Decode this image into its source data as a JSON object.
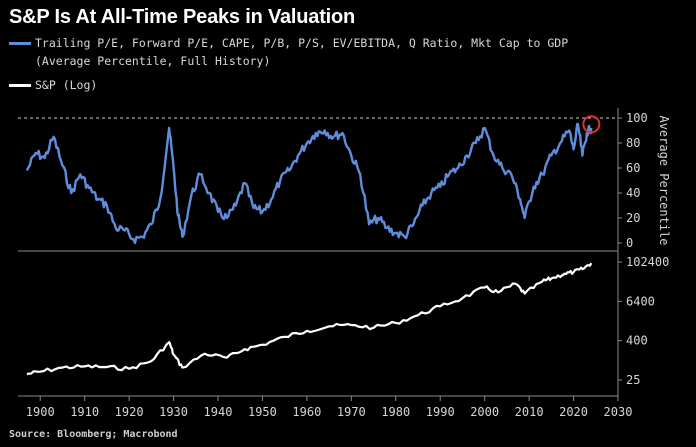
{
  "title": "S&P Is At All-Time Peaks in Valuation",
  "legend": {
    "series1_label": "Trailing P/E, Forward P/E, CAPE, P/B, P/S, EV/EBITDA, Q Ratio, Mkt Cap to GDP",
    "series1_sublabel": "(Average Percentile, Full History)",
    "series2_label": "S&P (Log)"
  },
  "source": "Source: Bloomberg; Macrobond",
  "colors": {
    "valuation": "#5f8ddb",
    "sp": "#ffffff",
    "highlight": "#e03030",
    "background": "#000000"
  },
  "chart_data": [
    {
      "type": "line",
      "name": "valuation-percentile",
      "ylabel": "Average Percentile",
      "ylim": [
        0,
        100
      ],
      "yticks": [
        "100",
        "80",
        "60",
        "40",
        "20",
        "0"
      ],
      "xlim": [
        1895,
        2030
      ],
      "reference_line": 100,
      "x": [
        1897,
        1899,
        1901,
        1903,
        1905,
        1907,
        1909,
        1911,
        1913,
        1915,
        1917,
        1919,
        1921,
        1923,
        1925,
        1927,
        1929,
        1930,
        1931,
        1932,
        1934,
        1936,
        1938,
        1940,
        1942,
        1944,
        1946,
        1948,
        1950,
        1952,
        1954,
        1956,
        1958,
        1960,
        1962,
        1964,
        1966,
        1968,
        1970,
        1972,
        1974,
        1976,
        1978,
        1980,
        1982,
        1984,
        1986,
        1988,
        1990,
        1992,
        1994,
        1996,
        1998,
        2000,
        2002,
        2004,
        2006,
        2008,
        2009,
        2011,
        2013,
        2015,
        2017,
        2019,
        2020,
        2021,
        2022,
        2023,
        2024
      ],
      "values": [
        58,
        72,
        68,
        85,
        62,
        40,
        55,
        44,
        35,
        30,
        12,
        10,
        3,
        5,
        15,
        35,
        92,
        60,
        22,
        5,
        38,
        55,
        40,
        25,
        20,
        30,
        48,
        28,
        25,
        35,
        50,
        58,
        70,
        80,
        88,
        90,
        85,
        88,
        70,
        55,
        15,
        20,
        12,
        8,
        5,
        15,
        30,
        40,
        45,
        55,
        60,
        70,
        80,
        92,
        70,
        60,
        55,
        35,
        20,
        45,
        55,
        70,
        80,
        90,
        75,
        95,
        70,
        88,
        92
      ]
    },
    {
      "type": "line",
      "name": "sp-log",
      "ylabel": "",
      "scale": "log",
      "ylim": [
        10,
        200000
      ],
      "yticks": [
        "102400",
        "6400",
        "400",
        "25"
      ],
      "xlim": [
        1895,
        2030
      ],
      "xticks": [
        "1900",
        "1910",
        "1920",
        "1930",
        "1940",
        "1950",
        "1960",
        "1970",
        "1980",
        "1990",
        "2000",
        "2010",
        "2020",
        "2030"
      ],
      "x": [
        1897,
        1900,
        1905,
        1910,
        1915,
        1920,
        1925,
        1929,
        1930,
        1932,
        1937,
        1942,
        1946,
        1950,
        1955,
        1960,
        1965,
        1970,
        1975,
        1980,
        1985,
        1990,
        1995,
        2000,
        2003,
        2007,
        2009,
        2013,
        2015,
        2018,
        2020,
        2022,
        2024
      ],
      "values": [
        38,
        45,
        60,
        65,
        62,
        55,
        95,
        360,
        150,
        60,
        160,
        120,
        220,
        300,
        520,
        800,
        1100,
        1200,
        1000,
        1400,
        2400,
        4500,
        8000,
        17000,
        12000,
        22000,
        11000,
        26000,
        32000,
        45000,
        50000,
        62000,
        95000
      ]
    }
  ]
}
